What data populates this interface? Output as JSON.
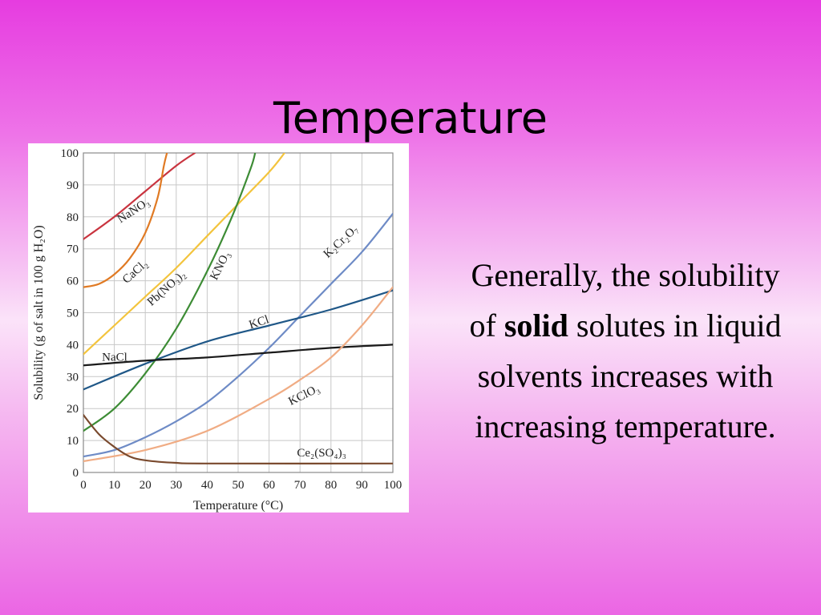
{
  "slide": {
    "title": "Temperature",
    "body_pre": "Generally, the solubility of ",
    "body_bold": "solid",
    "body_post": " solutes in liquid solvents increases with increasing temperature."
  },
  "chart_data": {
    "type": "line",
    "title": "",
    "xlabel": "Temperature (°C)",
    "ylabel": "Solubility (g of salt in 100 g H₂O)",
    "xlim": [
      0,
      100
    ],
    "ylim": [
      0,
      100
    ],
    "xticks": [
      0,
      10,
      20,
      30,
      40,
      50,
      60,
      70,
      80,
      90,
      100
    ],
    "yticks": [
      0,
      10,
      20,
      30,
      40,
      50,
      60,
      70,
      80,
      90,
      100
    ],
    "grid": true,
    "series": [
      {
        "name": "NaNO₃",
        "color": "#c9343f",
        "points": [
          [
            0,
            73
          ],
          [
            10,
            80
          ],
          [
            20,
            88
          ],
          [
            30,
            96
          ],
          [
            36,
            100
          ]
        ]
      },
      {
        "name": "CaCl₂",
        "color": "#e07a24",
        "points": [
          [
            0,
            58
          ],
          [
            5,
            59
          ],
          [
            10,
            62
          ],
          [
            15,
            67
          ],
          [
            20,
            75
          ],
          [
            24,
            86
          ],
          [
            26,
            96
          ],
          [
            27,
            100
          ]
        ]
      },
      {
        "name": "Pb(NO₃)₂",
        "color": "#f3c43d",
        "points": [
          [
            0,
            37
          ],
          [
            10,
            46
          ],
          [
            20,
            55
          ],
          [
            30,
            64
          ],
          [
            40,
            74
          ],
          [
            50,
            84
          ],
          [
            60,
            94
          ],
          [
            65,
            100
          ]
        ]
      },
      {
        "name": "KNO₃",
        "color": "#3d8c35",
        "points": [
          [
            0,
            13
          ],
          [
            10,
            20
          ],
          [
            20,
            31
          ],
          [
            30,
            45
          ],
          [
            40,
            63
          ],
          [
            48,
            80
          ],
          [
            54,
            95
          ],
          [
            55.5,
            100
          ]
        ]
      },
      {
        "name": "K₂Cr₂O₇",
        "color": "#6e8bc6",
        "points": [
          [
            0,
            5
          ],
          [
            10,
            7
          ],
          [
            20,
            11
          ],
          [
            30,
            16
          ],
          [
            40,
            22
          ],
          [
            50,
            30
          ],
          [
            60,
            39
          ],
          [
            70,
            49
          ],
          [
            80,
            59
          ],
          [
            90,
            69
          ],
          [
            100,
            81
          ]
        ]
      },
      {
        "name": "KCl",
        "color": "#1f5787",
        "points": [
          [
            0,
            26
          ],
          [
            20,
            34
          ],
          [
            40,
            41
          ],
          [
            60,
            46
          ],
          [
            80,
            51
          ],
          [
            100,
            57
          ]
        ]
      },
      {
        "name": "NaCl",
        "color": "#1a1a1a",
        "points": [
          [
            0,
            33.5
          ],
          [
            20,
            35
          ],
          [
            40,
            36
          ],
          [
            60,
            37.5
          ],
          [
            80,
            39
          ],
          [
            100,
            40
          ]
        ]
      },
      {
        "name": "KClO₃",
        "color": "#f0ac84",
        "points": [
          [
            0,
            3.5
          ],
          [
            20,
            7
          ],
          [
            40,
            13
          ],
          [
            60,
            23
          ],
          [
            70,
            29
          ],
          [
            80,
            36
          ],
          [
            90,
            46
          ],
          [
            100,
            58
          ]
        ]
      },
      {
        "name": "Ce₂(SO₄)₃",
        "color": "#7a4a2e",
        "points": [
          [
            0,
            18
          ],
          [
            5,
            12
          ],
          [
            10,
            8
          ],
          [
            15,
            5
          ],
          [
            20,
            3.8
          ],
          [
            30,
            3
          ],
          [
            40,
            2.8
          ],
          [
            100,
            2.8
          ]
        ]
      }
    ]
  }
}
